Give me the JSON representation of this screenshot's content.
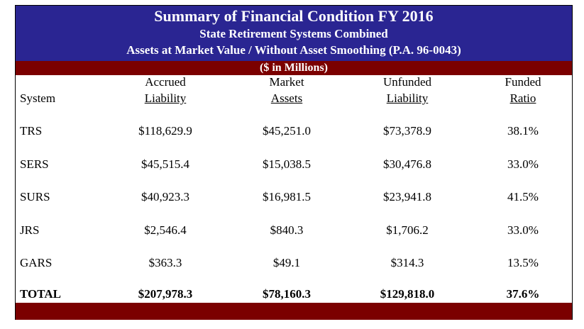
{
  "title": {
    "line1": "Summary of Financial Condition FY 2016",
    "line2": "State Retirement Systems Combined",
    "line3": "Assets at Market Value / Without Asset Smoothing (P.A. 96-0043)"
  },
  "units_label": "($ in Millions)",
  "headers": {
    "system": "System",
    "accrued_top": "Accrued",
    "accrued_bottom": "Liability",
    "market_top": "Market",
    "market_bottom": "Assets",
    "unfunded_top": "Unfunded",
    "unfunded_bottom": "Liability",
    "funded_top": "Funded",
    "funded_bottom": "Ratio"
  },
  "rows": [
    {
      "system": "TRS",
      "accrued": "$118,629.9",
      "market": "$45,251.0",
      "unfunded": "$73,378.9",
      "ratio": "38.1%"
    },
    {
      "system": "SERS",
      "accrued": "$45,515.4",
      "market": "$15,038.5",
      "unfunded": "$30,476.8",
      "ratio": "33.0%"
    },
    {
      "system": "SURS",
      "accrued": "$40,923.3",
      "market": "$16,981.5",
      "unfunded": "$23,941.8",
      "ratio": "41.5%"
    },
    {
      "system": "JRS",
      "accrued": "$2,546.4",
      "market": "$840.3",
      "unfunded": "$1,706.2",
      "ratio": "33.0%"
    },
    {
      "system": "GARS",
      "accrued": "$363.3",
      "market": "$49.1",
      "unfunded": "$314.3",
      "ratio": "13.5%"
    }
  ],
  "total": {
    "system": "TOTAL",
    "accrued": "$207,978.3",
    "market": "$78,160.3",
    "unfunded": "$129,818.0",
    "ratio": "37.6%"
  },
  "colors": {
    "header_bg": "#2a2592",
    "band_bg": "#7b0000"
  }
}
